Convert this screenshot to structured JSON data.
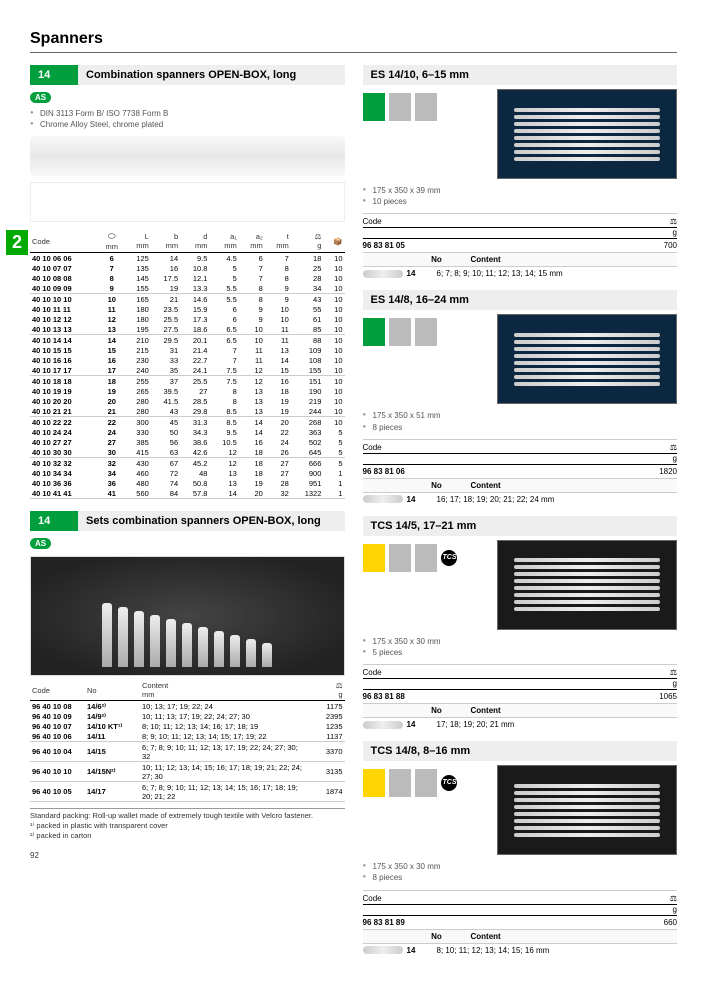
{
  "page": {
    "title": "Spanners",
    "number": "92"
  },
  "sideTab": "2",
  "sec1": {
    "num": "14",
    "title": "Combination spanners OPEN-BOX, long",
    "badge": "AS",
    "bullets": [
      "DIN 3113 Form B/ ISO 7738 Form B",
      "Chrome Alloy Steel, chrome plated"
    ],
    "tableHeaders": [
      "Code",
      "⬭\nmm",
      "L\nmm",
      "b\nmm",
      "d\nmm",
      "a₁\nmm",
      "a₂\nmm",
      "t\nmm",
      "⚖\ng",
      "📦"
    ],
    "rows": [
      [
        "40 10 06 06",
        "6",
        "125",
        "14",
        "9.5",
        "4.5",
        "6",
        "7",
        "18",
        "10"
      ],
      [
        "40 10 07 07",
        "7",
        "135",
        "16",
        "10.8",
        "5",
        "7",
        "8",
        "25",
        "10"
      ],
      [
        "40 10 08 08",
        "8",
        "145",
        "17.5",
        "12.1",
        "5",
        "7",
        "8",
        "28",
        "10"
      ],
      [
        "40 10 09 09",
        "9",
        "155",
        "19",
        "13.3",
        "5.5",
        "8",
        "9",
        "34",
        "10"
      ],
      [
        "40 10 10 10",
        "10",
        "165",
        "21",
        "14.6",
        "5.5",
        "8",
        "9",
        "43",
        "10"
      ],
      [
        "40 10 11 11",
        "11",
        "180",
        "23.5",
        "15.9",
        "6",
        "9",
        "10",
        "55",
        "10"
      ],
      [
        "40 10 12 12",
        "12",
        "180",
        "25.5",
        "17.3",
        "6",
        "9",
        "10",
        "61",
        "10"
      ],
      [
        "40 10 13 13",
        "13",
        "195",
        "27.5",
        "18.6",
        "6.5",
        "10",
        "11",
        "85",
        "10"
      ],
      [
        "40 10 14 14",
        "14",
        "210",
        "29.5",
        "20.1",
        "6.5",
        "10",
        "11",
        "88",
        "10"
      ],
      [
        "40 10 15 15",
        "15",
        "215",
        "31",
        "21.4",
        "7",
        "11",
        "13",
        "109",
        "10"
      ],
      [
        "40 10 16 16",
        "16",
        "230",
        "33",
        "22.7",
        "7",
        "11",
        "14",
        "108",
        "10"
      ],
      [
        "40 10 17 17",
        "17",
        "240",
        "35",
        "24.1",
        "7.5",
        "12",
        "15",
        "155",
        "10"
      ],
      [
        "40 10 18 18",
        "18",
        "255",
        "37",
        "25.5",
        "7.5",
        "12",
        "16",
        "151",
        "10"
      ],
      [
        "40 10 19 19",
        "19",
        "265",
        "39.5",
        "27",
        "8",
        "13",
        "18",
        "190",
        "10"
      ],
      [
        "40 10 20 20",
        "20",
        "280",
        "41.5",
        "28.5",
        "8",
        "13",
        "19",
        "219",
        "10"
      ],
      [
        "40 10 21 21",
        "21",
        "280",
        "43",
        "29.8",
        "8.5",
        "13",
        "19",
        "244",
        "10"
      ],
      [
        "40 10 22 22",
        "22",
        "300",
        "45",
        "31.3",
        "8.5",
        "14",
        "20",
        "268",
        "10"
      ],
      [
        "40 10 24 24",
        "24",
        "330",
        "50",
        "34.3",
        "9.5",
        "14",
        "22",
        "363",
        "5"
      ],
      [
        "40 10 27 27",
        "27",
        "385",
        "56",
        "38.6",
        "10.5",
        "16",
        "24",
        "502",
        "5"
      ],
      [
        "40 10 30 30",
        "30",
        "415",
        "63",
        "42.6",
        "12",
        "18",
        "26",
        "645",
        "5"
      ],
      [
        "40 10 32 32",
        "32",
        "430",
        "67",
        "45.2",
        "12",
        "18",
        "27",
        "666",
        "5"
      ],
      [
        "40 10 34 34",
        "34",
        "460",
        "72",
        "48",
        "13",
        "18",
        "27",
        "900",
        "1"
      ],
      [
        "40 10 36 36",
        "36",
        "480",
        "74",
        "50.8",
        "13",
        "19",
        "28",
        "951",
        "1"
      ],
      [
        "40 10 41 41",
        "41",
        "560",
        "84",
        "57.8",
        "14",
        "20",
        "32",
        "1322",
        "1"
      ]
    ],
    "groupBreaks": [
      3,
      7,
      11,
      15,
      19,
      23
    ]
  },
  "sec2": {
    "num": "14",
    "title": "Sets combination spanners OPEN-BOX, long",
    "badge": "AS",
    "headers": [
      "Code",
      "No",
      "Content\nmm",
      "⚖\ng"
    ],
    "rows": [
      [
        "96 40 10 08",
        "14/6²⁾",
        "10; 13; 17; 19; 22; 24",
        "1175"
      ],
      [
        "96 40 10 09",
        "14/9²⁾",
        "10; 11; 13; 17; 19; 22; 24; 27; 30",
        "2395"
      ],
      [
        "96 40 10 07",
        "14/10 KT¹⁾",
        "8; 10; 11; 12; 13; 14; 16; 17; 18; 19",
        "1235"
      ],
      [
        "96 40 10 06",
        "14/11",
        "8; 9; 10; 11; 12; 13; 14; 15; 17; 19; 22",
        "1137"
      ],
      [
        "96 40 10 04",
        "14/15",
        "6; 7; 8; 9; 10; 11; 12; 13; 17; 19; 22; 24; 27; 30; 32",
        "3370"
      ],
      [
        "96 40 10 10",
        "14/15N²⁾",
        "10; 11; 12; 13; 14; 15; 16; 17; 18; 19; 21; 22; 24; 27; 30",
        "3135"
      ],
      [
        "96 40 10 05",
        "14/17",
        "6; 7; 8; 9; 10; 11; 12; 13; 14; 15; 16; 17; 18; 19; 20; 21; 22",
        "1874"
      ]
    ],
    "groupBreaks": [
      3,
      4,
      5,
      6
    ],
    "footnotes": [
      "Standard packing: Roll-up wallet made of extremely tough textile with Velcro fastener.",
      "¹⁾ packed in plastic with transparent cover",
      "²⁾ packed in carton"
    ]
  },
  "kit1": {
    "title": "ES 14/10, 6–15 mm",
    "swatches": [
      "green",
      "gray",
      "gray"
    ],
    "bullets": [
      "175 x 350 x 39 mm",
      "10 pieces"
    ],
    "codeLabel": "Code",
    "weightIcon": "⚖",
    "weightUnit": "g",
    "code": "96 83 81 05",
    "weight": "700",
    "noLabel": "No",
    "contentLabel": "Content",
    "no": "14",
    "content": "6; 7; 8; 9; 10; 11; 12; 13; 14; 15 mm"
  },
  "kit2": {
    "title": "ES 14/8, 16–24 mm",
    "swatches": [
      "green",
      "gray",
      "gray"
    ],
    "bullets": [
      "175 x 350 x 51 mm",
      "8 pieces"
    ],
    "codeLabel": "Code",
    "weightUnit": "g",
    "code": "96 83 81 06",
    "weight": "1820",
    "noLabel": "No",
    "contentLabel": "Content",
    "no": "14",
    "content": "16; 17; 18; 19; 20; 21; 22; 24 mm"
  },
  "kit3": {
    "title": "TCS 14/5, 17–21 mm",
    "swatches": [
      "yellow",
      "gray",
      "gray"
    ],
    "badge": "TCS",
    "bullets": [
      "175 x 350 x 30 mm",
      "5 pieces"
    ],
    "codeLabel": "Code",
    "weightUnit": "g",
    "code": "96 83 81 88",
    "weight": "1065",
    "noLabel": "No",
    "contentLabel": "Content",
    "no": "14",
    "content": "17; 18; 19; 20; 21 mm"
  },
  "kit4": {
    "title": "TCS 14/8, 8–16 mm",
    "swatches": [
      "yellow",
      "gray",
      "gray"
    ],
    "badge": "TCS",
    "bullets": [
      "175 x 350 x 30 mm",
      "8 pieces"
    ],
    "codeLabel": "Code",
    "weightUnit": "g",
    "code": "96 83 81 89",
    "weight": "660",
    "noLabel": "No",
    "contentLabel": "Content",
    "no": "14",
    "content": "8; 10; 11; 12; 13; 14; 15; 16 mm"
  }
}
